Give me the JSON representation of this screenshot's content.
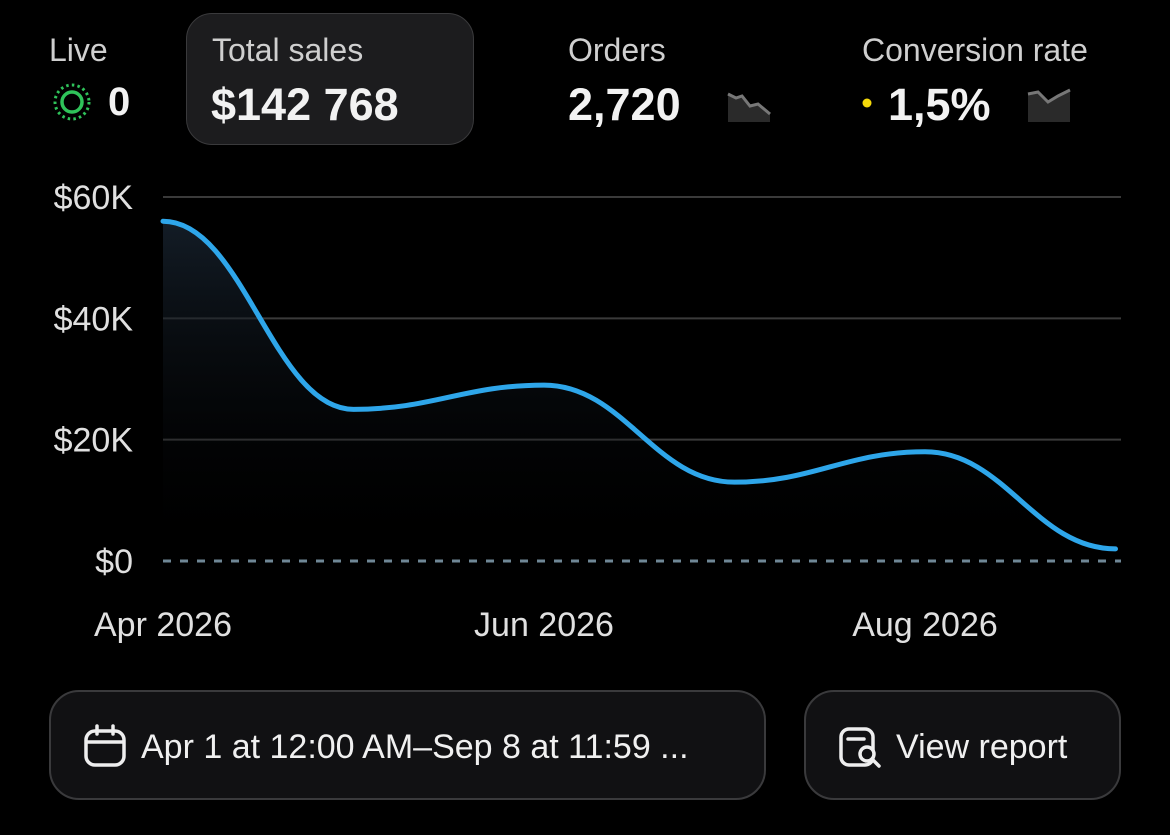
{
  "header": {
    "live": {
      "label": "Live",
      "value": "0"
    },
    "total_sales": {
      "label": "Total sales",
      "value": "$142 768"
    },
    "orders": {
      "label": "Orders",
      "value": "2,720"
    },
    "conversion_rate": {
      "label": "Conversion rate",
      "value": "1,5%"
    }
  },
  "chart_data": {
    "type": "line",
    "categories": [
      "Apr 2026",
      null,
      "Jun 2026",
      null,
      "Aug 2026",
      null
    ],
    "series": [
      {
        "name": "Total sales",
        "color": "#2ea6ea",
        "values": [
          56000,
          25000,
          29000,
          13000,
          18000,
          2000
        ]
      }
    ],
    "ylim": [
      0,
      60000
    ],
    "yticks": [
      {
        "value": 0,
        "label": "$0"
      },
      {
        "value": 20000,
        "label": "$20K"
      },
      {
        "value": 40000,
        "label": "$40K"
      },
      {
        "value": 60000,
        "label": "$60K"
      }
    ],
    "grid": true
  },
  "footer": {
    "date_range": "Apr 1 at 12:00 AM–Sep 8 at 11:59 ...",
    "report_button": "View report"
  }
}
